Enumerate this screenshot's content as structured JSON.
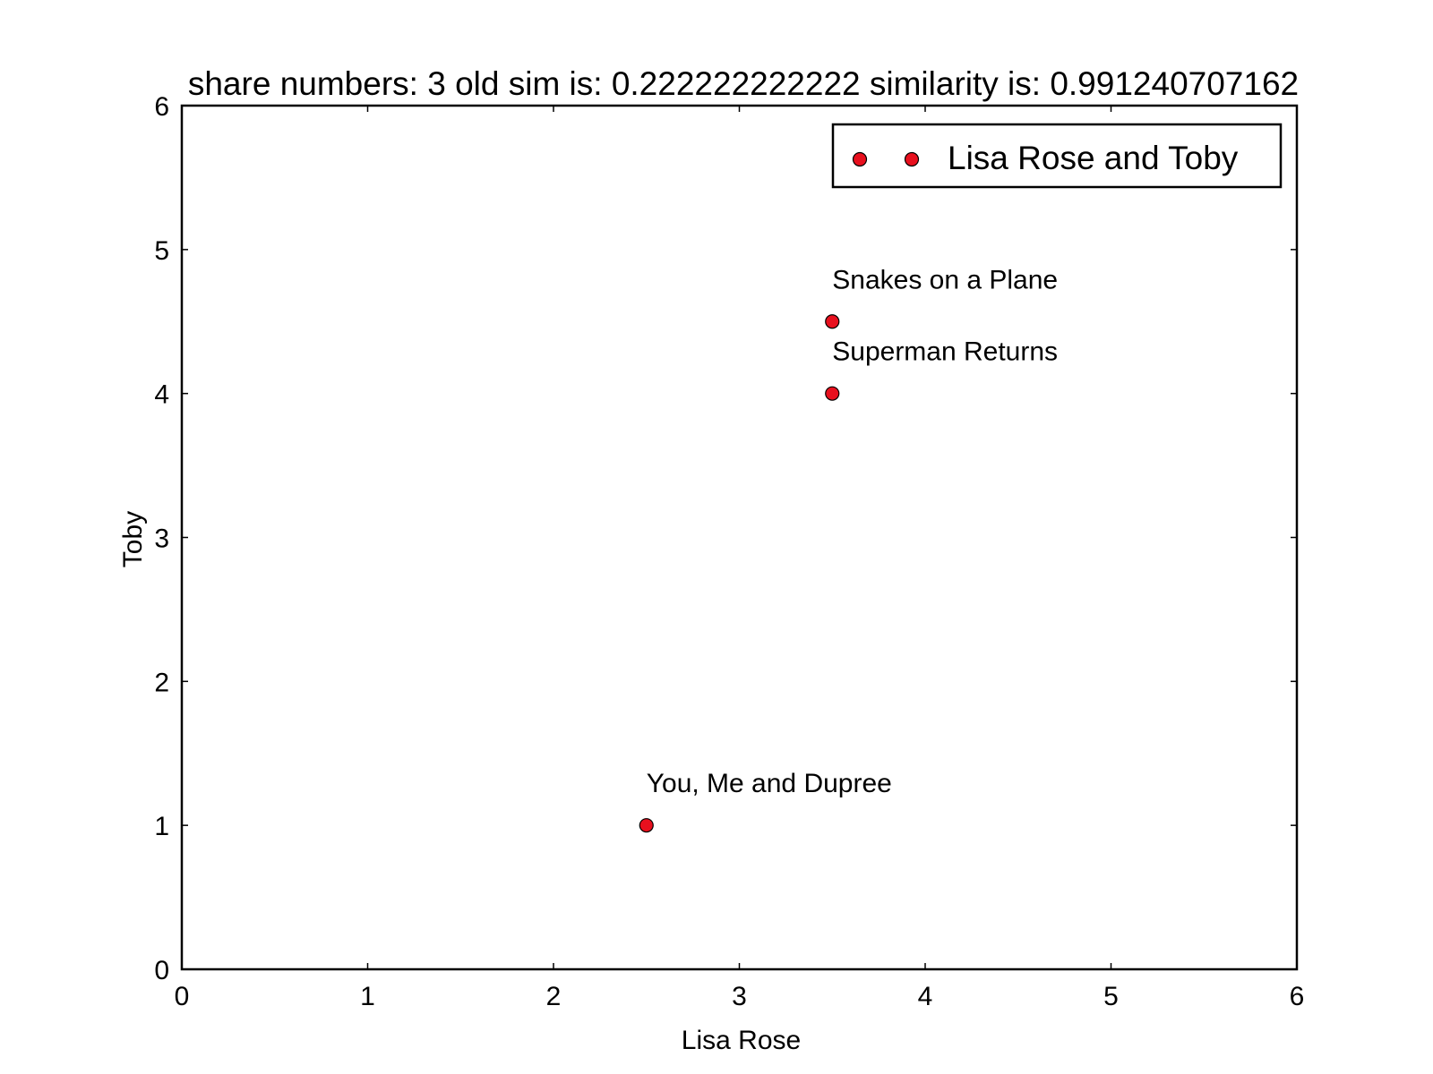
{
  "chart_data": {
    "type": "scatter",
    "title": "share numbers: 3 old sim is: 0.222222222222 similarity is: 0.991240707162",
    "xlabel": "Lisa Rose",
    "ylabel": "Toby",
    "xlim": [
      0,
      6
    ],
    "ylim": [
      0,
      6
    ],
    "xticks": [
      "0",
      "1",
      "2",
      "3",
      "4",
      "5",
      "6"
    ],
    "yticks": [
      "0",
      "1",
      "2",
      "3",
      "4",
      "5",
      "6"
    ],
    "grid": false,
    "legend": {
      "position": "top-right",
      "entries": [
        "Lisa Rose and Toby"
      ]
    },
    "series": [
      {
        "name": "Lisa Rose and Toby",
        "color": "#e8101e",
        "points": [
          {
            "x": 3.5,
            "y": 4.5,
            "label": "Snakes on a Plane"
          },
          {
            "x": 3.5,
            "y": 4.0,
            "label": "Superman Returns"
          },
          {
            "x": 2.5,
            "y": 1.0,
            "label": "You, Me and Dupree"
          }
        ]
      }
    ]
  }
}
